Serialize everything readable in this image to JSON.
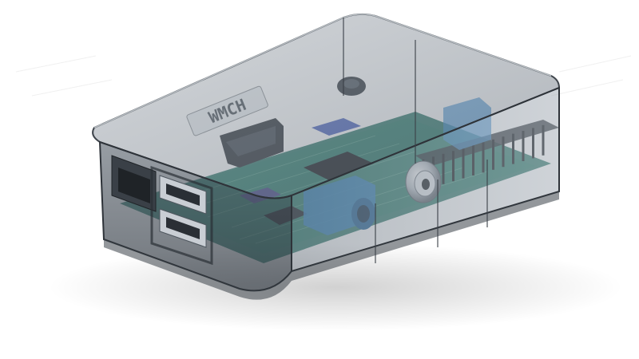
{
  "image": {
    "subject": "raspberry-pi-in-transparent-case",
    "case_lid_text": "WMCH",
    "colors": {
      "background": "#ffffff",
      "case_tint": "#7f8790",
      "case_edge": "#4a5058",
      "pcb": "#1f6f5f",
      "connector_blue": "#2f7fbf",
      "usb_metal": "#c9ced4",
      "header_pins": "#20262c"
    }
  }
}
